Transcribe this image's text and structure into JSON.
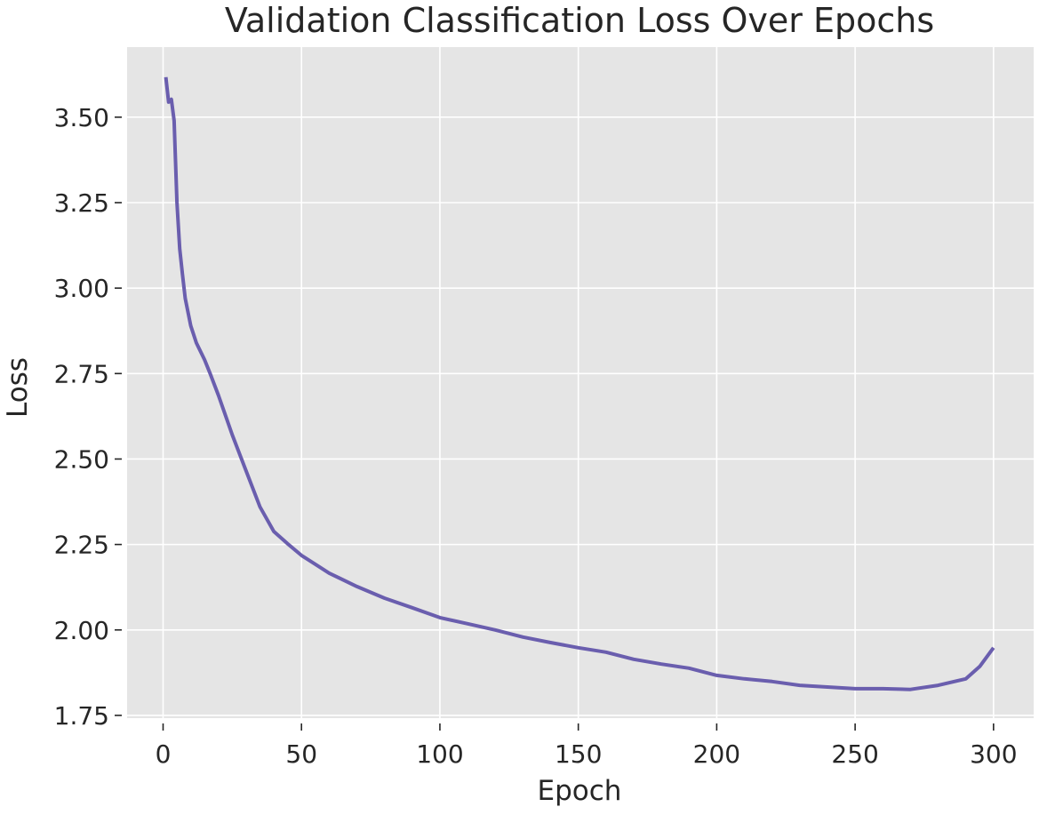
{
  "chart_data": {
    "type": "line",
    "title": "Validation Classification Loss Over Epochs",
    "xlabel": "Epoch",
    "ylabel": "Loss",
    "xlim": [
      -13,
      314.5
    ],
    "ylim": [
      1.742,
      3.705
    ],
    "xticks": [
      0,
      50,
      100,
      150,
      200,
      250,
      300
    ],
    "yticks": [
      1.75,
      2.0,
      2.25,
      2.5,
      2.75,
      3.0,
      3.25,
      3.5
    ],
    "ytick_labels": [
      "1.75",
      "2.00",
      "2.25",
      "2.50",
      "2.75",
      "3.00",
      "3.25",
      "3.50"
    ],
    "grid": true,
    "background": "#e5e5e5",
    "line_color": "#6a5eae",
    "series": [
      {
        "x": [
          1,
          2,
          3,
          4,
          5,
          6,
          7,
          8,
          10,
          12,
          15,
          17,
          20,
          25,
          30,
          35,
          40,
          45,
          50,
          60,
          70,
          80,
          90,
          100,
          110,
          120,
          130,
          140,
          150,
          160,
          170,
          180,
          190,
          200,
          210,
          220,
          230,
          240,
          250,
          260,
          270,
          280,
          290,
          295,
          300
        ],
        "y": [
          3.617,
          3.544,
          3.552,
          3.49,
          3.25,
          3.115,
          3.04,
          2.97,
          2.89,
          2.84,
          2.79,
          2.75,
          2.686,
          2.57,
          2.465,
          2.36,
          2.288,
          2.252,
          2.218,
          2.166,
          2.127,
          2.093,
          2.065,
          2.036,
          2.018,
          2.0,
          1.979,
          1.963,
          1.948,
          1.935,
          1.914,
          1.9,
          1.888,
          1.867,
          1.857,
          1.849,
          1.838,
          1.833,
          1.828,
          1.828,
          1.826,
          1.838,
          1.857,
          1.893,
          1.948
        ]
      }
    ]
  }
}
